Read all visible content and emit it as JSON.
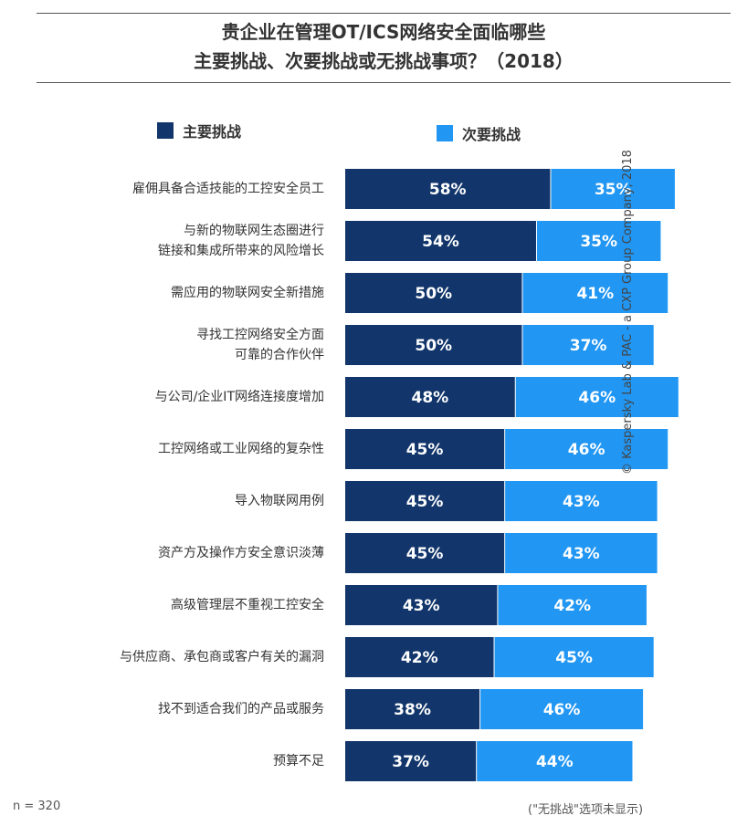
{
  "title_line1": "贵企业在管理OT/ICS网络安全面临哪些",
  "title_line2": "主要挑战、次要挑战或无挑战事项？（2018）",
  "legend": {
    "primary": "主要挑战",
    "secondary": "次要挑战"
  },
  "colors": {
    "primary": "#12366b",
    "secondary": "#2196f3",
    "bar_text": "#ffffff"
  },
  "chart_data": {
    "type": "bar",
    "orientation": "horizontal",
    "stacked": true,
    "categories": [
      "雇佣具备合适技能的工控安全员工",
      "与新的物联网生态圈进行\n链接和集成所带来的风险增长",
      "需应用的物联网安全新措施",
      "寻找工控网络安全方面\n可靠的合作伙伴",
      "与公司/企业IT网络连接度增加",
      "工控网络或工业网络的复杂性",
      "导入物联网用例",
      "资产方及操作方安全意识淡薄",
      "高级管理层不重视工控安全",
      "与供应商、承包商或客户有关的漏洞",
      "找不到适合我们的产品或服务",
      "预算不足"
    ],
    "series": [
      {
        "name": "主要挑战",
        "values": [
          58,
          54,
          50,
          50,
          48,
          45,
          45,
          45,
          43,
          42,
          38,
          37
        ]
      },
      {
        "name": "次要挑战",
        "values": [
          35,
          35,
          41,
          37,
          46,
          46,
          43,
          43,
          42,
          45,
          46,
          44
        ]
      }
    ],
    "value_labels": {
      "primary": [
        "58%",
        "54%",
        "50%",
        "50%",
        "48%",
        "45%",
        "45%",
        "45%",
        "43%",
        "42%",
        "38%",
        "37%"
      ],
      "secondary": [
        "35%",
        "35%",
        "41%",
        "37%",
        "46%",
        "46%",
        "43%",
        "43%",
        "42%",
        "45%",
        "46%",
        "44%"
      ]
    },
    "xlim": [
      0,
      100
    ],
    "legend_position": "top",
    "grid": false
  },
  "footer": {
    "sample": "n = 320",
    "note": "(\"无挑战\"选项未显示)"
  },
  "credit": "© Kaspersky Lab & PAC - a CXP Group Company, 2018"
}
